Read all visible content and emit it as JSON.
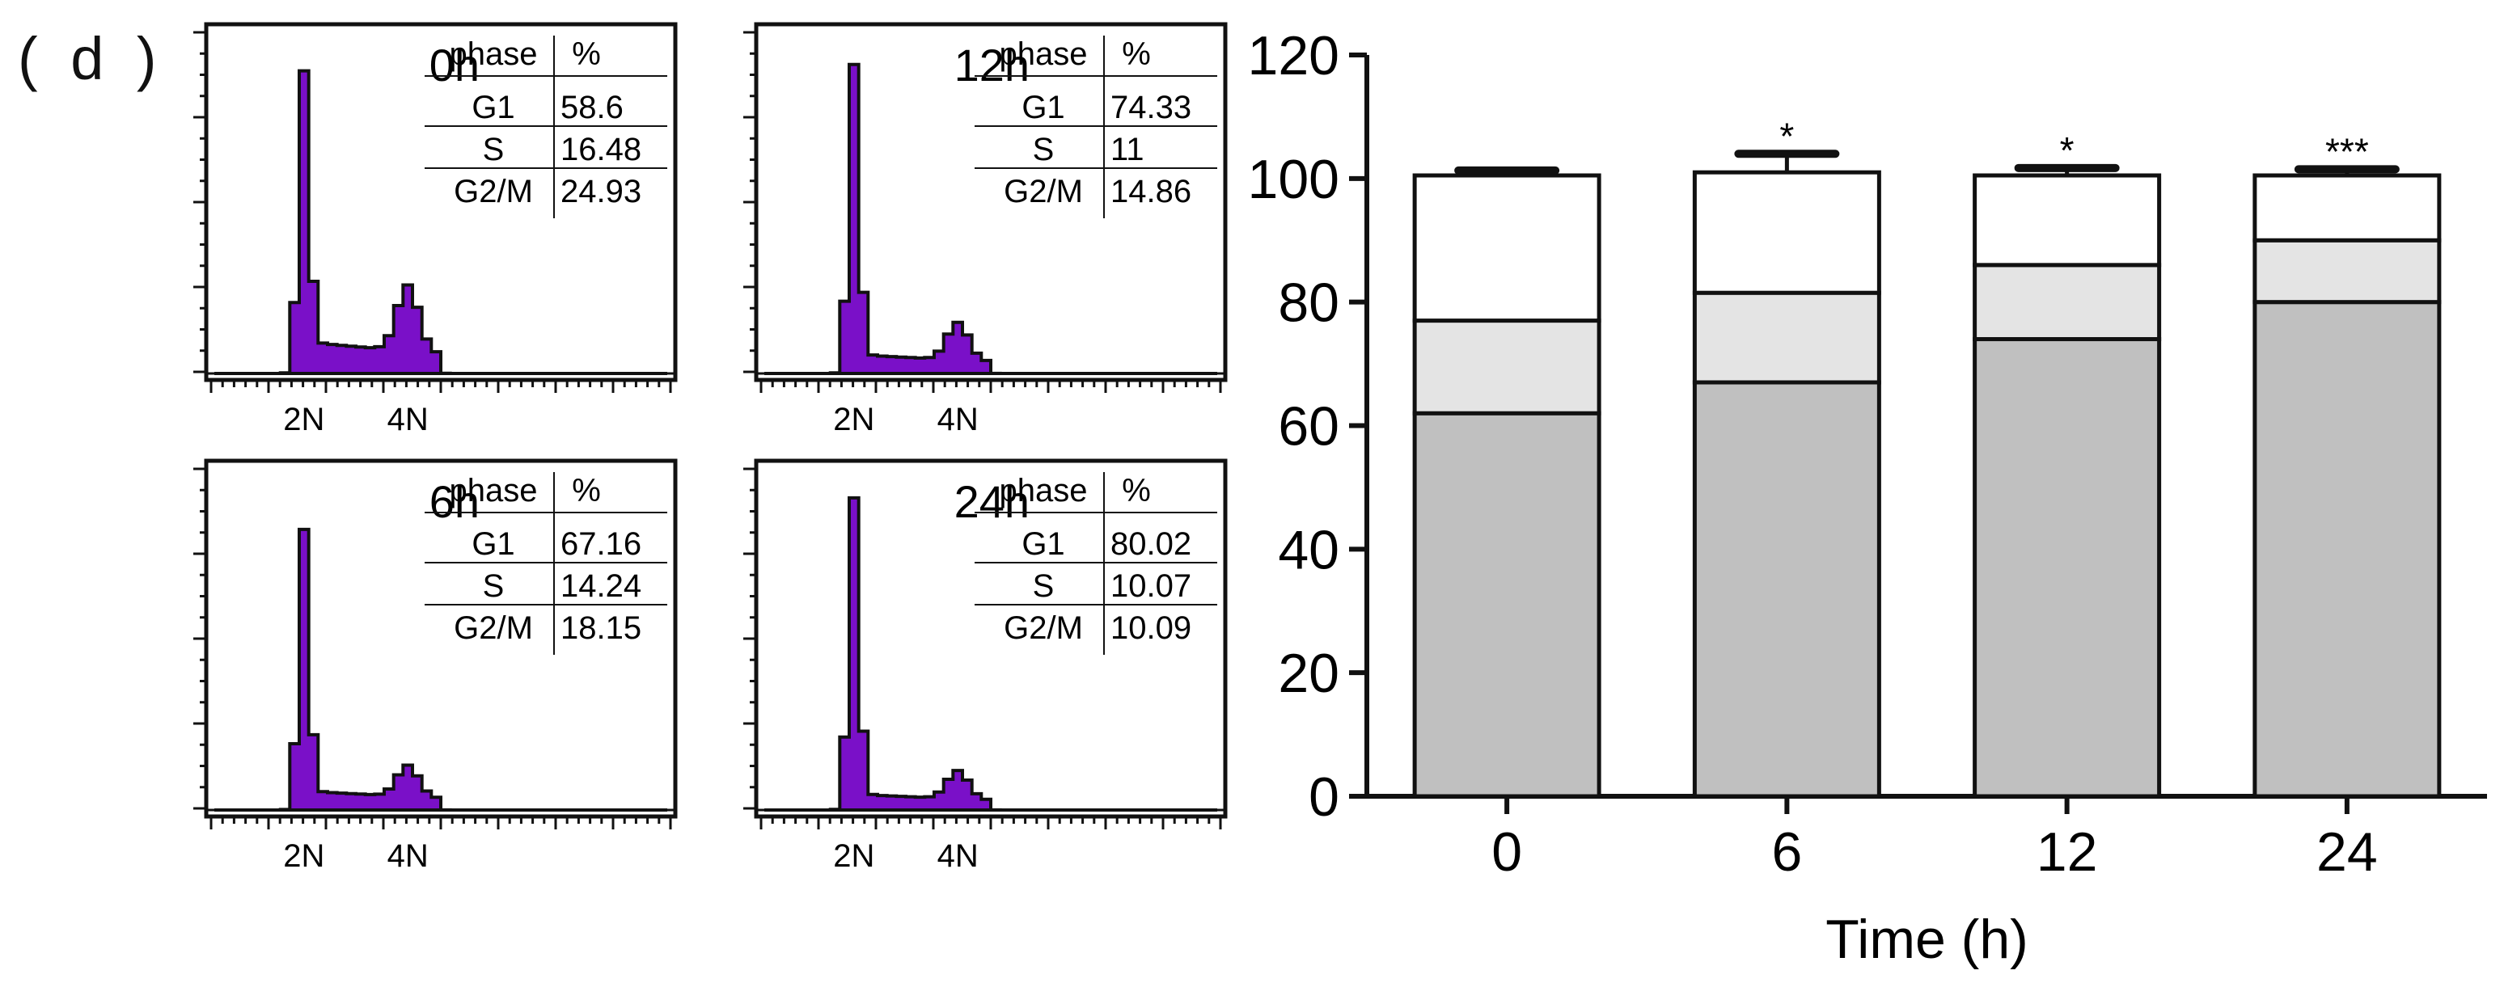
{
  "panel_label": "( d )",
  "chart_data": [
    {
      "type": "area",
      "time_label": "0h",
      "xticks": [
        "2N",
        "4N"
      ],
      "table": {
        "headers": [
          "phase",
          "%"
        ],
        "rows": [
          [
            "G1",
            "58.6"
          ],
          [
            "S",
            "16.48"
          ],
          [
            "G2/M",
            "24.93"
          ]
        ]
      },
      "histogram": {
        "bins": 48,
        "g1_peak_bin": 9,
        "g2_peak_bin": 20,
        "g1_peak_height": 0.93,
        "g2_peak_height": 0.21,
        "s_level": 0.1
      }
    },
    {
      "type": "area",
      "time_label": "12h",
      "xticks": [
        "2N",
        "4N"
      ],
      "table": {
        "headers": [
          "phase",
          "%"
        ],
        "rows": [
          [
            "G1",
            "74.33"
          ],
          [
            "S",
            "11"
          ],
          [
            "G2/M",
            "14.86"
          ]
        ]
      },
      "histogram": {
        "bins": 48,
        "g1_peak_bin": 9,
        "g2_peak_bin": 20,
        "g1_peak_height": 0.95,
        "g2_peak_height": 0.12,
        "s_level": 0.06
      }
    },
    {
      "type": "area",
      "time_label": "6h",
      "xticks": [
        "2N",
        "4N"
      ],
      "table": {
        "headers": [
          "phase",
          "%"
        ],
        "rows": [
          [
            "G1",
            "67.16"
          ],
          [
            "S",
            "14.24"
          ],
          [
            "G2/M",
            "18.15"
          ]
        ]
      },
      "histogram": {
        "bins": 48,
        "g1_peak_bin": 9,
        "g2_peak_bin": 20,
        "g1_peak_height": 0.86,
        "g2_peak_height": 0.1,
        "s_level": 0.06
      }
    },
    {
      "type": "area",
      "time_label": "24h",
      "xticks": [
        "2N",
        "4N"
      ],
      "table": {
        "headers": [
          "phase",
          "%"
        ],
        "rows": [
          [
            "G1",
            "80.02"
          ],
          [
            "S",
            "10.07"
          ],
          [
            "G2/M",
            "10.09"
          ]
        ]
      },
      "histogram": {
        "bins": 48,
        "g1_peak_bin": 9,
        "g2_peak_bin": 20,
        "g1_peak_height": 0.96,
        "g2_peak_height": 0.09,
        "s_level": 0.05
      }
    },
    {
      "type": "bar",
      "stacked": true,
      "categories": [
        "0",
        "6",
        "12",
        "24"
      ],
      "xlabel": "Time (h)",
      "ylabel": "",
      "ylim": [
        0,
        120
      ],
      "yticks": [
        0,
        20,
        40,
        60,
        80,
        100,
        120
      ],
      "series": [
        {
          "values": [
            62,
            67,
            74,
            80
          ],
          "errors": [
            1.5,
            2,
            1.2,
            1
          ],
          "color": "#c0c0c0",
          "stars": [
            "",
            "",
            "",
            ""
          ]
        },
        {
          "values": [
            15,
            14.5,
            12,
            10
          ],
          "errors": [
            1.5,
            1.8,
            1.2,
            0.8
          ],
          "color": "#e4e4e4",
          "stars": [
            "",
            "*",
            "***",
            "***"
          ]
        },
        {
          "values": [
            23.5,
            19.5,
            14.5,
            10.5
          ],
          "errors": [
            0.8,
            3,
            1.2,
            1
          ],
          "color": "#ffffff",
          "stars": [
            "",
            "**",
            "***",
            "***"
          ]
        }
      ],
      "top_stars": [
        "",
        "*",
        "*",
        "***"
      ]
    }
  ]
}
